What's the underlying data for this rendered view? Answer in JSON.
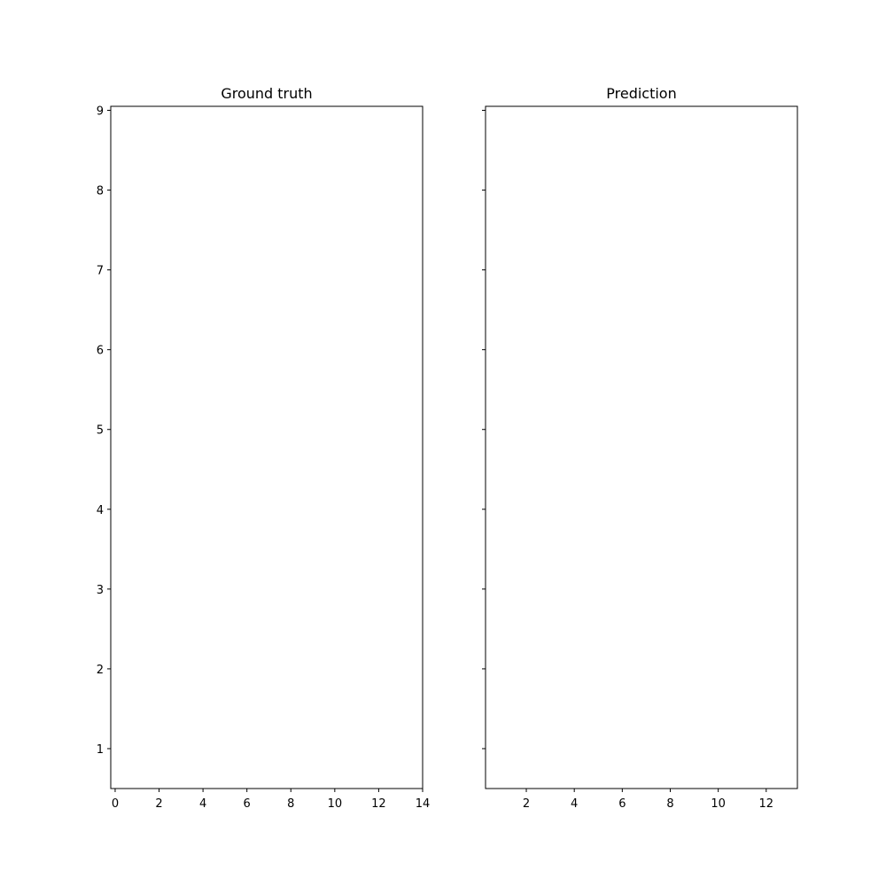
{
  "chart_data": [
    {
      "type": "scatter",
      "title": "Ground truth",
      "xlabel": "",
      "ylabel": "",
      "xlim": [
        -0.2,
        14
      ],
      "ylim": [
        0.5,
        9.05
      ],
      "x_ticks": [
        0,
        2,
        4,
        6,
        8,
        10,
        12,
        14
      ],
      "y_ticks": [
        1,
        2,
        3,
        4,
        5,
        6,
        7,
        8,
        9
      ],
      "y_tick_labels_shown": true,
      "series": [],
      "grid": false,
      "legend": "none"
    },
    {
      "type": "scatter",
      "title": "Prediction",
      "xlabel": "",
      "ylabel": "",
      "xlim": [
        0.3,
        13.3
      ],
      "ylim": [
        0.5,
        9.05
      ],
      "x_ticks": [
        2,
        4,
        6,
        8,
        10,
        12
      ],
      "y_ticks": [
        1,
        2,
        3,
        4,
        5,
        6,
        7,
        8,
        9
      ],
      "y_tick_labels_shown": false,
      "series": [],
      "grid": false,
      "legend": "none"
    }
  ]
}
